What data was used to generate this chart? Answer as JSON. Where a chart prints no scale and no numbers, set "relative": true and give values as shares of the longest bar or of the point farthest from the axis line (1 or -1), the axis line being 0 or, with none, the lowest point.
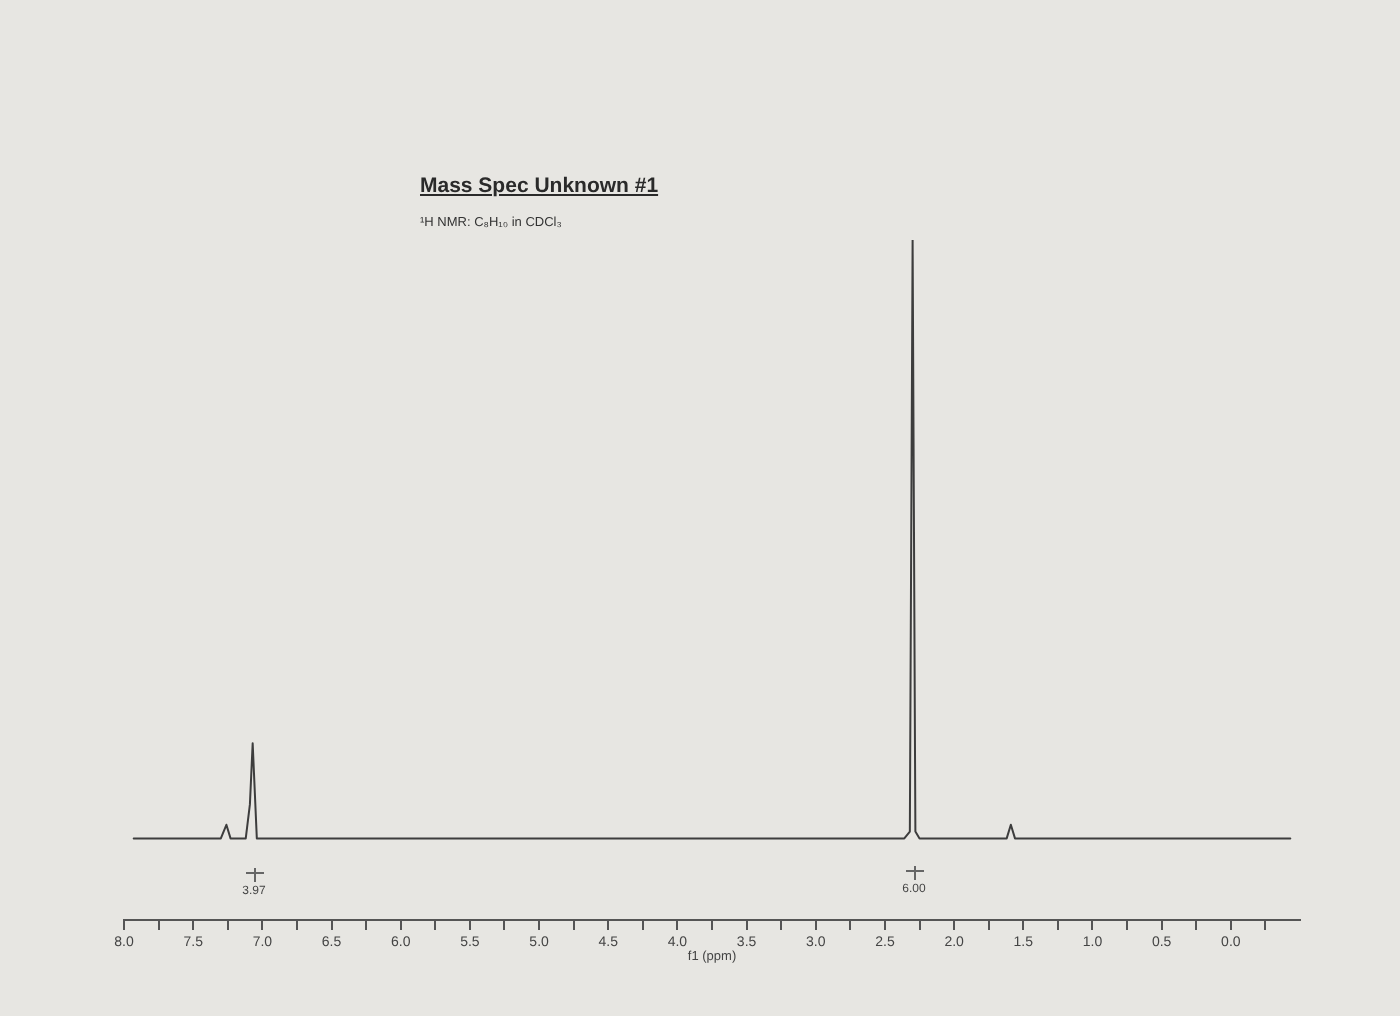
{
  "chart_data": {
    "type": "line",
    "title": "Mass Spec Unknown #1",
    "subtitle": "¹H NMR: C₈H₁₀ in CDCl₃",
    "xlabel": "f1 (ppm)",
    "relative": true,
    "x": [
      7.93,
      7.3,
      7.26,
      7.23,
      7.12,
      7.09,
      7.07,
      7.04,
      2.36,
      2.32,
      2.3,
      2.28,
      2.25,
      1.62,
      1.59,
      1.56,
      -0.43
    ],
    "series": [
      {
        "color": "#3d3d3d",
        "values": [
          0.12,
          0.12,
          0.14,
          0.12,
          0.12,
          0.17,
          0.26,
          0.12,
          0.12,
          0.13,
          1,
          0.13,
          0.12,
          0.12,
          0.14,
          0.12,
          0.12
        ]
      }
    ],
    "xlim": [
      8,
      -0.5
    ],
    "xticks": [
      {
        "value": 8,
        "label": "8.0"
      },
      {
        "value": 7.75,
        "label": null
      },
      7.5,
      {
        "value": 7.25,
        "label": null
      },
      {
        "value": 7,
        "label": "7.0"
      },
      {
        "value": 6.75,
        "label": null
      },
      6.5,
      {
        "value": 6.25,
        "label": null
      },
      {
        "value": 6,
        "label": "6.0"
      },
      {
        "value": 5.75,
        "label": null
      },
      5.5,
      {
        "value": 5.25,
        "label": null
      },
      {
        "value": 5,
        "label": "5.0"
      },
      {
        "value": 4.75,
        "label": null
      },
      4.5,
      {
        "value": 4.25,
        "label": null
      },
      {
        "value": 4,
        "label": "4.0"
      },
      {
        "value": 3.75,
        "label": null
      },
      3.5,
      {
        "value": 3.25,
        "label": null
      },
      {
        "value": 3,
        "label": "3.0"
      },
      {
        "value": 2.75,
        "label": null
      },
      2.5,
      {
        "value": 2.25,
        "label": null
      },
      {
        "value": 2,
        "label": "2.0"
      },
      {
        "value": 1.75,
        "label": null
      },
      1.5,
      {
        "value": 1.25,
        "label": null
      },
      {
        "value": 1,
        "label": "1.0"
      },
      {
        "value": 0.75,
        "label": null
      },
      0.5,
      {
        "value": 0.25,
        "label": null
      },
      {
        "value": 0,
        "label": "0.0"
      },
      {
        "value": -0.25,
        "label": null
      }
    ],
    "annotations": [
      "3.97",
      "6.00"
    ],
    "marker": "none",
    "line_style": "solid"
  }
}
